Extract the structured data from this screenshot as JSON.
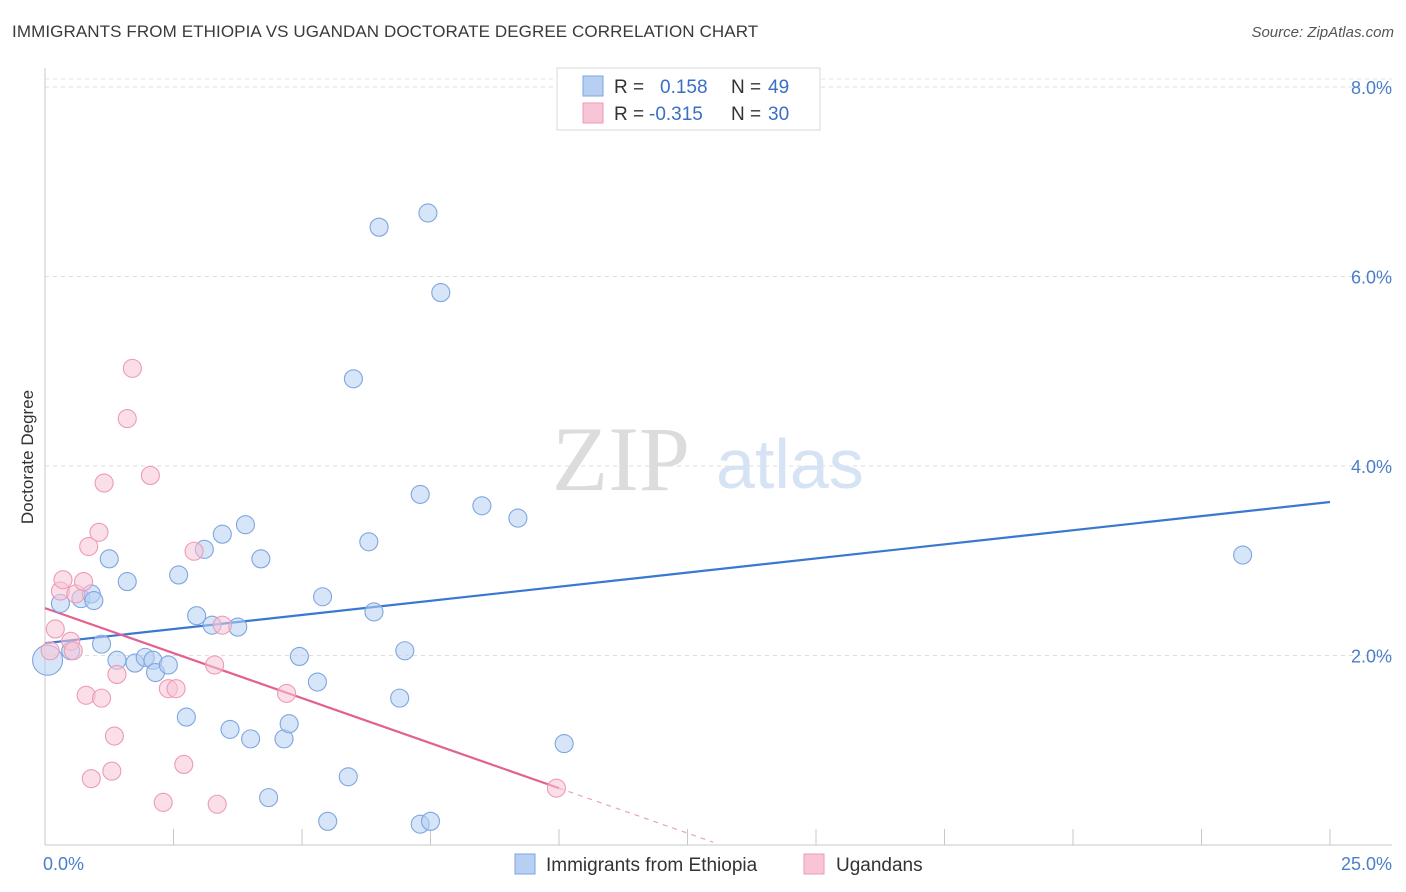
{
  "header": {
    "title": "IMMIGRANTS FROM ETHIOPIA VS UGANDAN DOCTORATE DEGREE CORRELATION CHART",
    "source": "Source: ZipAtlas.com"
  },
  "watermark": {
    "zip": "ZIP",
    "atlas": "atlas"
  },
  "legend": {
    "rows": [
      {
        "r_label": "R =",
        "r_value": "0.158",
        "n_label": "N =",
        "n_value": "49",
        "color": "#b7d0f2",
        "stroke": "#7ea6e0"
      },
      {
        "r_label": "R =",
        "r_value": "-0.315",
        "n_label": "N =",
        "n_value": "30",
        "color": "#f8c5d6",
        "stroke": "#ee9ab6"
      }
    ]
  },
  "bottom_legend": [
    {
      "label": "Immigrants from Ethiopia",
      "color": "#b7d0f2",
      "stroke": "#7ea6e0"
    },
    {
      "label": "Ugandans",
      "color": "#f8c5d6",
      "stroke": "#ee9ab6"
    }
  ],
  "chart_data": {
    "type": "scatter",
    "title": "IMMIGRANTS FROM ETHIOPIA VS UGANDAN DOCTORATE DEGREE CORRELATION CHART",
    "xlabel": "",
    "ylabel": "Doctorate Degree",
    "xlim": [
      0,
      25
    ],
    "ylim": [
      0,
      8.2
    ],
    "x_tick_labels": [
      {
        "value": 0,
        "label": "0.0%"
      },
      {
        "value": 25,
        "label": "25.0%"
      }
    ],
    "y_tick_labels": [
      {
        "value": 2,
        "label": "2.0%"
      },
      {
        "value": 4,
        "label": "4.0%"
      },
      {
        "value": 6,
        "label": "6.0%"
      },
      {
        "value": 8,
        "label": "8.0%"
      }
    ],
    "x_minor_ticks": [
      2.5,
      5,
      7.5,
      10,
      12.5,
      15,
      17.5,
      20,
      22.5,
      25
    ],
    "grid_y": [
      2,
      4,
      6,
      8
    ],
    "series": [
      {
        "name": "Immigrants from Ethiopia",
        "color": "#b7d0f2",
        "stroke": "#7ea6e0",
        "trend": {
          "x0": 0,
          "y0": 2.13,
          "x1": 25,
          "y1": 3.62,
          "color": "#3a78d0"
        },
        "points": [
          [
            0.05,
            1.95
          ],
          [
            0.3,
            2.55
          ],
          [
            0.5,
            2.05
          ],
          [
            0.7,
            2.6
          ],
          [
            0.9,
            2.65
          ],
          [
            0.95,
            2.58
          ],
          [
            1.1,
            2.12
          ],
          [
            1.25,
            3.02
          ],
          [
            1.4,
            1.95
          ],
          [
            1.6,
            2.78
          ],
          [
            1.75,
            1.92
          ],
          [
            1.95,
            1.98
          ],
          [
            2.1,
            1.95
          ],
          [
            2.15,
            1.82
          ],
          [
            2.4,
            1.9
          ],
          [
            2.6,
            2.85
          ],
          [
            2.75,
            1.35
          ],
          [
            2.95,
            2.42
          ],
          [
            3.1,
            3.12
          ],
          [
            3.25,
            2.32
          ],
          [
            3.45,
            3.28
          ],
          [
            3.6,
            1.22
          ],
          [
            3.75,
            2.3
          ],
          [
            3.9,
            3.38
          ],
          [
            4.0,
            1.12
          ],
          [
            4.2,
            3.02
          ],
          [
            4.35,
            0.5
          ],
          [
            4.65,
            1.12
          ],
          [
            4.75,
            1.28
          ],
          [
            4.95,
            1.99
          ],
          [
            5.3,
            1.72
          ],
          [
            5.4,
            2.62
          ],
          [
            5.5,
            0.25
          ],
          [
            5.9,
            0.72
          ],
          [
            6.0,
            4.92
          ],
          [
            6.3,
            3.2
          ],
          [
            6.4,
            2.46
          ],
          [
            6.5,
            6.52
          ],
          [
            6.9,
            1.55
          ],
          [
            7.0,
            2.05
          ],
          [
            7.3,
            3.7
          ],
          [
            7.3,
            0.22
          ],
          [
            7.45,
            6.67
          ],
          [
            7.5,
            0.25
          ],
          [
            7.7,
            5.83
          ],
          [
            8.5,
            3.58
          ],
          [
            9.2,
            3.45
          ],
          [
            10.1,
            1.07
          ],
          [
            23.3,
            3.06
          ]
        ]
      },
      {
        "name": "Ugandans",
        "color": "#f8c5d6",
        "stroke": "#ee9ab6",
        "trend": {
          "x0": 0,
          "y0": 2.5,
          "x1": 10,
          "y1": 0.6,
          "color": "#e2628f"
        },
        "trend_extension": {
          "x0": 10,
          "y0": 0.6,
          "x1": 13,
          "y1": 0.03
        },
        "points": [
          [
            0.1,
            2.05
          ],
          [
            0.2,
            2.28
          ],
          [
            0.3,
            2.68
          ],
          [
            0.35,
            2.8
          ],
          [
            0.5,
            2.15
          ],
          [
            0.55,
            2.05
          ],
          [
            0.6,
            2.65
          ],
          [
            0.75,
            2.78
          ],
          [
            0.8,
            1.58
          ],
          [
            0.85,
            3.15
          ],
          [
            0.9,
            0.7
          ],
          [
            1.05,
            3.3
          ],
          [
            1.1,
            1.55
          ],
          [
            1.15,
            3.82
          ],
          [
            1.3,
            0.78
          ],
          [
            1.35,
            1.15
          ],
          [
            1.4,
            1.8
          ],
          [
            1.6,
            4.5
          ],
          [
            1.7,
            5.03
          ],
          [
            2.05,
            3.9
          ],
          [
            2.3,
            0.45
          ],
          [
            2.4,
            1.65
          ],
          [
            2.7,
            0.85
          ],
          [
            2.9,
            3.1
          ],
          [
            3.35,
            0.43
          ],
          [
            3.45,
            2.32
          ],
          [
            3.3,
            1.9
          ],
          [
            4.7,
            1.6
          ],
          [
            9.95,
            0.6
          ],
          [
            2.55,
            1.65
          ]
        ]
      }
    ]
  }
}
